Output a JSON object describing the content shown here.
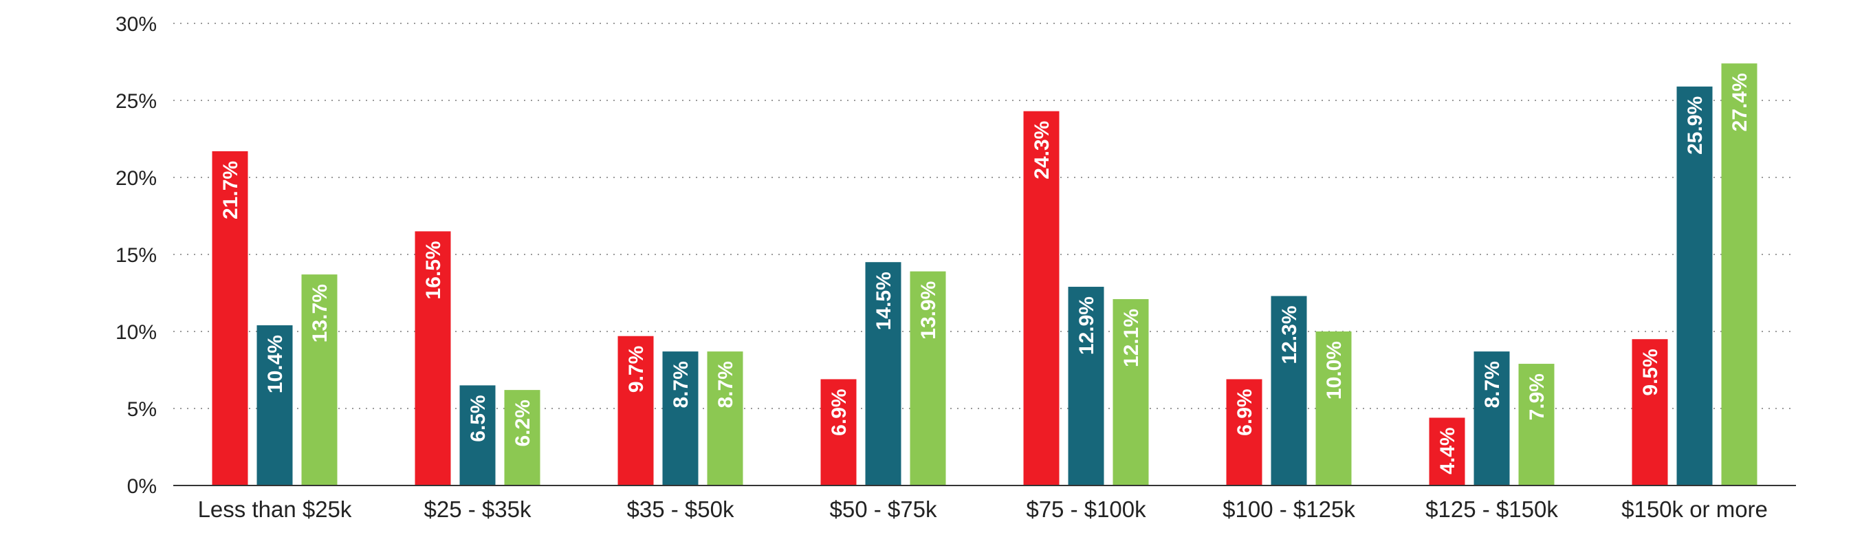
{
  "chart_data": {
    "type": "bar",
    "categories": [
      "Less than $25k",
      "$25 - $35k",
      "$35 - $50k",
      "$50 - $75k",
      "$75 - $100k",
      "$100 - $125k",
      "$125 - $150k",
      "$150k or more"
    ],
    "series": [
      {
        "color": "#ee1c25",
        "values": [
          21.7,
          16.5,
          9.7,
          6.9,
          24.3,
          6.9,
          4.4,
          9.5
        ]
      },
      {
        "color": "#17677a",
        "values": [
          10.4,
          6.5,
          8.7,
          14.5,
          12.9,
          12.3,
          8.7,
          25.9
        ]
      },
      {
        "color": "#8cc852",
        "values": [
          13.7,
          6.2,
          8.7,
          13.9,
          12.1,
          10.0,
          7.9,
          27.4
        ]
      }
    ],
    "ylim": [
      0,
      30
    ],
    "yticks": [
      0,
      5,
      10,
      15,
      20,
      25,
      30
    ],
    "y_unit": "%",
    "grid": true,
    "title": "",
    "xlabel": "",
    "ylabel": ""
  }
}
